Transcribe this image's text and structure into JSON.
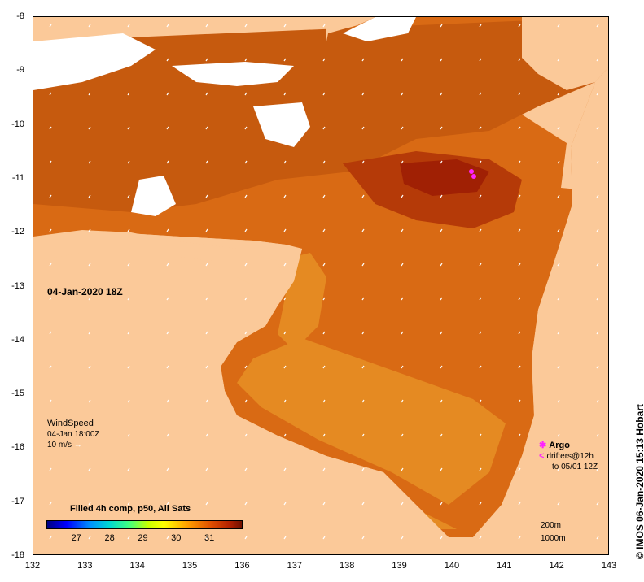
{
  "map": {
    "x_ticks": [
      "132",
      "133",
      "134",
      "135",
      "136",
      "137",
      "138",
      "139",
      "140",
      "141",
      "142",
      "143"
    ],
    "y_ticks": [
      "-8",
      "-9",
      "-10",
      "-11",
      "-12",
      "-13",
      "-14",
      "-15",
      "-16",
      "-17",
      "-18"
    ],
    "lon_range": [
      132,
      143
    ],
    "lat_range": [
      -18,
      -8
    ],
    "land_color": "#fbc999",
    "sea_colors": [
      "#d96a14",
      "#c65a0e",
      "#b53a08",
      "#e58a22",
      "#a02004"
    ],
    "cloud_color": "#ffffff",
    "argo_color": "#ff22ff"
  },
  "annotations": {
    "timestamp": "04-Jan-2020 18Z",
    "wind_title": "WindSpeed",
    "wind_time": "04-Jan 18:00Z",
    "wind_scale": "10 m/s",
    "argo": "Argo",
    "drifters": "drifters@12h",
    "drifters_to": "to 05/01 12Z",
    "depth_200": "200m",
    "depth_1000": "1000m"
  },
  "colorbar": {
    "title": "Filled 4h comp, p50, All Sats",
    "ticks": [
      "27",
      "28",
      "29",
      "30",
      "31"
    ],
    "tick_values": [
      27,
      28,
      29,
      30,
      31
    ],
    "range": [
      26.1,
      32.0
    ]
  },
  "credit": "© IMOS 06-Jan-2020 15:13 Hobart"
}
